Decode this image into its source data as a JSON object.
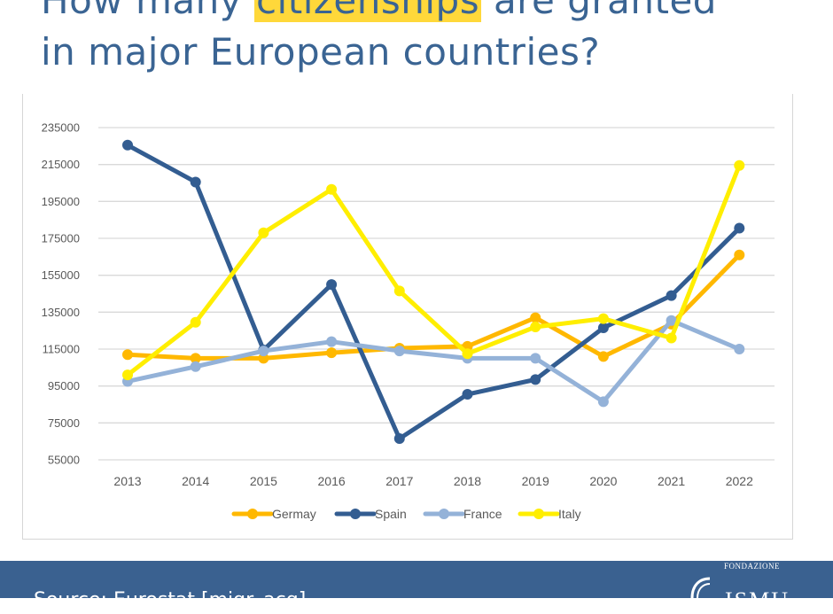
{
  "title": {
    "before": "How many ",
    "highlight": "citizenships",
    "after": " are granted",
    "line2": "in major European countries?"
  },
  "footer": {
    "source": "Source: Eurostat [migr_acq]",
    "logo_top": "FONDAZIONE",
    "logo_main": "ISMU"
  },
  "chart_data": {
    "type": "line",
    "title": "",
    "xlabel": "",
    "ylabel": "",
    "categories": [
      "2013",
      "2014",
      "2015",
      "2016",
      "2017",
      "2018",
      "2019",
      "2020",
      "2021",
      "2022"
    ],
    "y_ticks": [
      55000,
      75000,
      95000,
      115000,
      135000,
      155000,
      175000,
      195000,
      215000,
      235000
    ],
    "ylim": [
      55000,
      235000
    ],
    "grid": true,
    "legend_position": "bottom",
    "series": [
      {
        "name": "Germay",
        "color": "#ffb800",
        "values": [
          112000,
          110000,
          110000,
          113000,
          115500,
          116500,
          132000,
          111000,
          128500,
          166000
        ]
      },
      {
        "name": "Spain",
        "color": "#335d91",
        "values": [
          225500,
          205500,
          114500,
          150000,
          66500,
          90500,
          98500,
          126500,
          144000,
          180500
        ]
      },
      {
        "name": "France",
        "color": "#94b2d8",
        "values": [
          97500,
          105500,
          114000,
          119000,
          114000,
          110000,
          110000,
          86500,
          130500,
          115000
        ]
      },
      {
        "name": "Italy",
        "color": "#ffee00",
        "values": [
          101000,
          129500,
          178000,
          201500,
          146500,
          112500,
          127000,
          131500,
          121000,
          214500
        ]
      }
    ]
  }
}
